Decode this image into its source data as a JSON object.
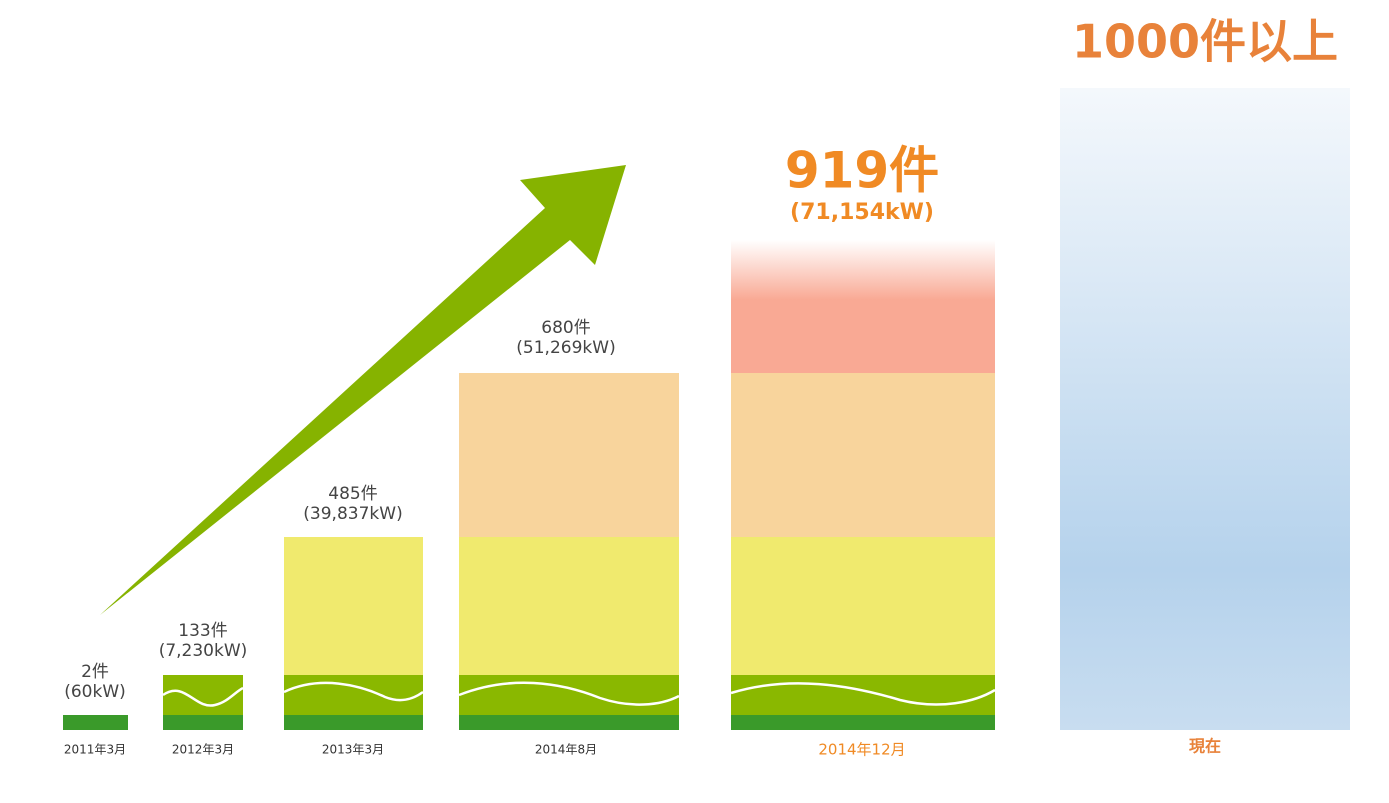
{
  "items": [
    {
      "count": "2件",
      "output": "(60kW)",
      "date": "2011年3月"
    },
    {
      "count": "133件",
      "output": "(7,230kW)",
      "date": "2012年3月"
    },
    {
      "count": "485件",
      "output": "(39,837kW)",
      "date": "2013年3月"
    },
    {
      "count": "680件",
      "output": "(51,269kW)",
      "date": "2014年8月"
    },
    {
      "count": "919件",
      "output": "(71,154kW)",
      "date": "2014年12月"
    },
    {
      "count": "1000件以上",
      "date": "現在"
    }
  ]
}
